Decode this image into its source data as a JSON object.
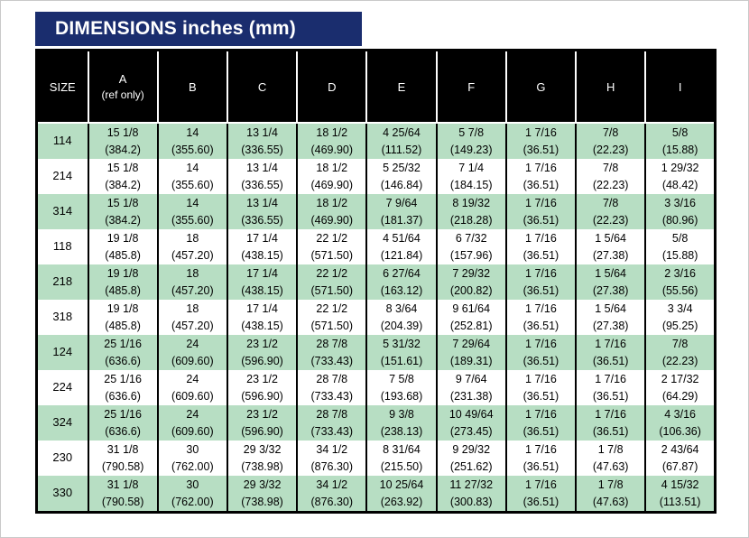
{
  "title": "DIMENSIONS inches (mm)",
  "colors": {
    "title_bar_bg": "#1a2d6e",
    "title_text": "#ffffff",
    "column_header_bg": "#000000",
    "column_header_text": "#ffffff",
    "row_green": "#b7dec3",
    "row_white": "#ffffff",
    "grid_line": "#000000"
  },
  "table": {
    "columns": [
      {
        "label": "SIZE",
        "sub": ""
      },
      {
        "label": "A",
        "sub": "(ref only)"
      },
      {
        "label": "B",
        "sub": ""
      },
      {
        "label": "C",
        "sub": ""
      },
      {
        "label": "D",
        "sub": ""
      },
      {
        "label": "E",
        "sub": ""
      },
      {
        "label": "F",
        "sub": ""
      },
      {
        "label": "G",
        "sub": ""
      },
      {
        "label": "H",
        "sub": ""
      },
      {
        "label": "I",
        "sub": ""
      }
    ],
    "rows": [
      {
        "size": "114",
        "cells": [
          [
            "15 1/8",
            "(384.2)"
          ],
          [
            "14",
            "(355.60)"
          ],
          [
            "13 1/4",
            "(336.55)"
          ],
          [
            "18 1/2",
            "(469.90)"
          ],
          [
            "4 25/64",
            "(111.52)"
          ],
          [
            "5 7/8",
            "(149.23)"
          ],
          [
            "1 7/16",
            "(36.51)"
          ],
          [
            "7/8",
            "(22.23)"
          ],
          [
            "5/8",
            "(15.88)"
          ]
        ]
      },
      {
        "size": "214",
        "cells": [
          [
            "15 1/8",
            "(384.2)"
          ],
          [
            "14",
            "(355.60)"
          ],
          [
            "13 1/4",
            "(336.55)"
          ],
          [
            "18 1/2",
            "(469.90)"
          ],
          [
            "5 25/32",
            "(146.84)"
          ],
          [
            "7 1/4",
            "(184.15)"
          ],
          [
            "1 7/16",
            "(36.51)"
          ],
          [
            "7/8",
            "(22.23)"
          ],
          [
            "1 29/32",
            "(48.42)"
          ]
        ]
      },
      {
        "size": "314",
        "cells": [
          [
            "15 1/8",
            "(384.2)"
          ],
          [
            "14",
            "(355.60)"
          ],
          [
            "13 1/4",
            "(336.55)"
          ],
          [
            "18 1/2",
            "(469.90)"
          ],
          [
            "7 9/64",
            "(181.37)"
          ],
          [
            "8 19/32",
            "(218.28)"
          ],
          [
            "1 7/16",
            "(36.51)"
          ],
          [
            "7/8",
            "(22.23)"
          ],
          [
            "3 3/16",
            "(80.96)"
          ]
        ]
      },
      {
        "size": "118",
        "cells": [
          [
            "19 1/8",
            "(485.8)"
          ],
          [
            "18",
            "(457.20)"
          ],
          [
            "17 1/4",
            "(438.15)"
          ],
          [
            "22 1/2",
            "(571.50)"
          ],
          [
            "4 51/64",
            "(121.84)"
          ],
          [
            "6 7/32",
            "(157.96)"
          ],
          [
            "1 7/16",
            "(36.51)"
          ],
          [
            "1 5/64",
            "(27.38)"
          ],
          [
            "5/8",
            "(15.88)"
          ]
        ]
      },
      {
        "size": "218",
        "cells": [
          [
            "19 1/8",
            "(485.8)"
          ],
          [
            "18",
            "(457.20)"
          ],
          [
            "17 1/4",
            "(438.15)"
          ],
          [
            "22 1/2",
            "(571.50)"
          ],
          [
            "6 27/64",
            "(163.12)"
          ],
          [
            "7 29/32",
            "(200.82)"
          ],
          [
            "1 7/16",
            "(36.51)"
          ],
          [
            "1 5/64",
            "(27.38)"
          ],
          [
            "2 3/16",
            "(55.56)"
          ]
        ]
      },
      {
        "size": "318",
        "cells": [
          [
            "19 1/8",
            "(485.8)"
          ],
          [
            "18",
            "(457.20)"
          ],
          [
            "17 1/4",
            "(438.15)"
          ],
          [
            "22 1/2",
            "(571.50)"
          ],
          [
            "8 3/64",
            "(204.39)"
          ],
          [
            "9 61/64",
            "(252.81)"
          ],
          [
            "1 7/16",
            "(36.51)"
          ],
          [
            "1 5/64",
            "(27.38)"
          ],
          [
            "3 3/4",
            "(95.25)"
          ]
        ]
      },
      {
        "size": "124",
        "cells": [
          [
            "25 1/16",
            "(636.6)"
          ],
          [
            "24",
            "(609.60)"
          ],
          [
            "23 1/2",
            "(596.90)"
          ],
          [
            "28 7/8",
            "(733.43)"
          ],
          [
            "5 31/32",
            "(151.61)"
          ],
          [
            "7 29/64",
            "(189.31)"
          ],
          [
            "1 7/16",
            "(36.51)"
          ],
          [
            "1 7/16",
            "(36.51)"
          ],
          [
            "7/8",
            "(22.23)"
          ]
        ]
      },
      {
        "size": "224",
        "cells": [
          [
            "25 1/16",
            "(636.6)"
          ],
          [
            "24",
            "(609.60)"
          ],
          [
            "23 1/2",
            "(596.90)"
          ],
          [
            "28 7/8",
            "(733.43)"
          ],
          [
            "7 5/8",
            "(193.68)"
          ],
          [
            "9 7/64",
            "(231.38)"
          ],
          [
            "1 7/16",
            "(36.51)"
          ],
          [
            "1 7/16",
            "(36.51)"
          ],
          [
            "2 17/32",
            "(64.29)"
          ]
        ]
      },
      {
        "size": "324",
        "cells": [
          [
            "25 1/16",
            "(636.6)"
          ],
          [
            "24",
            "(609.60)"
          ],
          [
            "23 1/2",
            "(596.90)"
          ],
          [
            "28 7/8",
            "(733.43)"
          ],
          [
            "9 3/8",
            "(238.13)"
          ],
          [
            "10 49/64",
            "(273.45)"
          ],
          [
            "1 7/16",
            "(36.51)"
          ],
          [
            "1 7/16",
            "(36.51)"
          ],
          [
            "4 3/16",
            "(106.36)"
          ]
        ]
      },
      {
        "size": "230",
        "cells": [
          [
            "31 1/8",
            "(790.58)"
          ],
          [
            "30",
            "(762.00)"
          ],
          [
            "29 3/32",
            "(738.98)"
          ],
          [
            "34 1/2",
            "(876.30)"
          ],
          [
            "8 31/64",
            "(215.50)"
          ],
          [
            "9 29/32",
            "(251.62)"
          ],
          [
            "1 7/16",
            "(36.51)"
          ],
          [
            "1 7/8",
            "(47.63)"
          ],
          [
            "2 43/64",
            "(67.87)"
          ]
        ]
      },
      {
        "size": "330",
        "cells": [
          [
            "31 1/8",
            "(790.58)"
          ],
          [
            "30",
            "(762.00)"
          ],
          [
            "29 3/32",
            "(738.98)"
          ],
          [
            "34 1/2",
            "(876.30)"
          ],
          [
            "10 25/64",
            "(263.92)"
          ],
          [
            "11 27/32",
            "(300.83)"
          ],
          [
            "1 7/16",
            "(36.51)"
          ],
          [
            "1 7/8",
            "(47.63)"
          ],
          [
            "4 15/32",
            "(113.51)"
          ]
        ]
      }
    ]
  }
}
